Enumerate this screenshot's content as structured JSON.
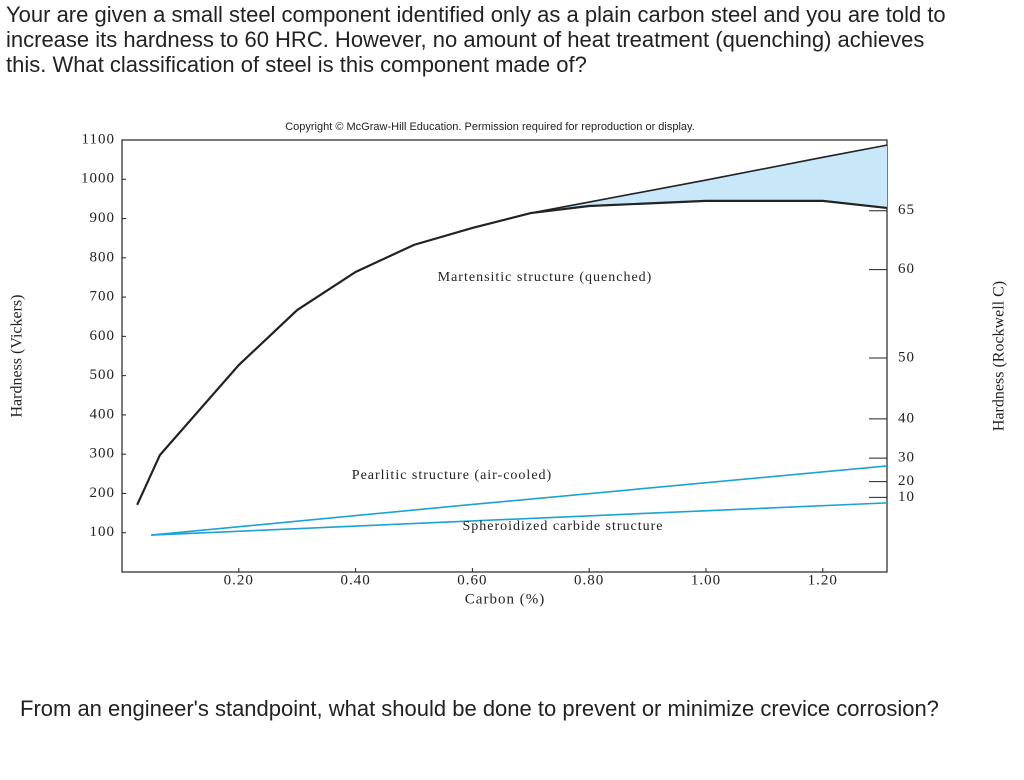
{
  "question1": "Your are given a small steel component identified only as a plain carbon steel and you are told to increase its hardness to 60 HRC. However, no amount of heat treatment (quenching) achieves this.  What classification of steel is this component made of?",
  "question2": "From an engineer's standpoint, what should be done to prevent or minimize crevice corrosion?",
  "chart_data": {
    "type": "line",
    "copyright": "Copyright © McGraw-Hill Education. Permission required for reproduction or display.",
    "x_label": "Carbon (%)",
    "y_label": "Hardness (Vickers)",
    "y2_label": "Hardness (Rockwell C)",
    "xlim": [
      0,
      1.31
    ],
    "xticks": [
      {
        "value": 0.2,
        "label": "0.20"
      },
      {
        "value": 0.4,
        "label": "0.40"
      },
      {
        "value": 0.6,
        "label": "0.60"
      },
      {
        "value": 0.8,
        "label": "0.80"
      },
      {
        "value": 1.0,
        "label": "1.00"
      },
      {
        "value": 1.2,
        "label": "1.20"
      }
    ],
    "ylim": [
      0,
      1100
    ],
    "yticks": [
      100,
      200,
      300,
      400,
      500,
      600,
      700,
      800,
      900,
      1000,
      1100
    ],
    "y2ticks": [
      65,
      60,
      50,
      40,
      30,
      20,
      10
    ],
    "y2_vickers_equivalent": [
      920,
      770,
      545,
      390,
      290,
      230,
      190
    ],
    "fill_color": "#c8e8fa",
    "series": [
      {
        "name": "Martensitic structure (quenched)",
        "color": "#222222",
        "x": [
          0.026,
          0.065,
          0.2,
          0.3,
          0.4,
          0.5,
          0.6,
          0.7,
          0.8,
          1.0,
          1.2,
          1.31
        ],
        "values": [
          171,
          298,
          527,
          667,
          764,
          833,
          876,
          914,
          932,
          945,
          945,
          927
        ]
      },
      {
        "color": "#222222",
        "x": [
          0.7,
          0.8,
          1.0,
          1.2,
          1.31
        ],
        "values": [
          914,
          942,
          998,
          1056,
          1087
        ]
      },
      {
        "name": "Pearlitic structure (air-cooled)",
        "color": "#1ba3d3",
        "x": [
          0.05,
          0.6,
          1.31
        ],
        "values": [
          94,
          172,
          270
        ]
      },
      {
        "name": "Spheroidized carbide structure",
        "color": "#1ba3d3",
        "x": [
          0.05,
          0.6,
          1.31
        ],
        "values": [
          94,
          130,
          176
        ]
      }
    ]
  }
}
